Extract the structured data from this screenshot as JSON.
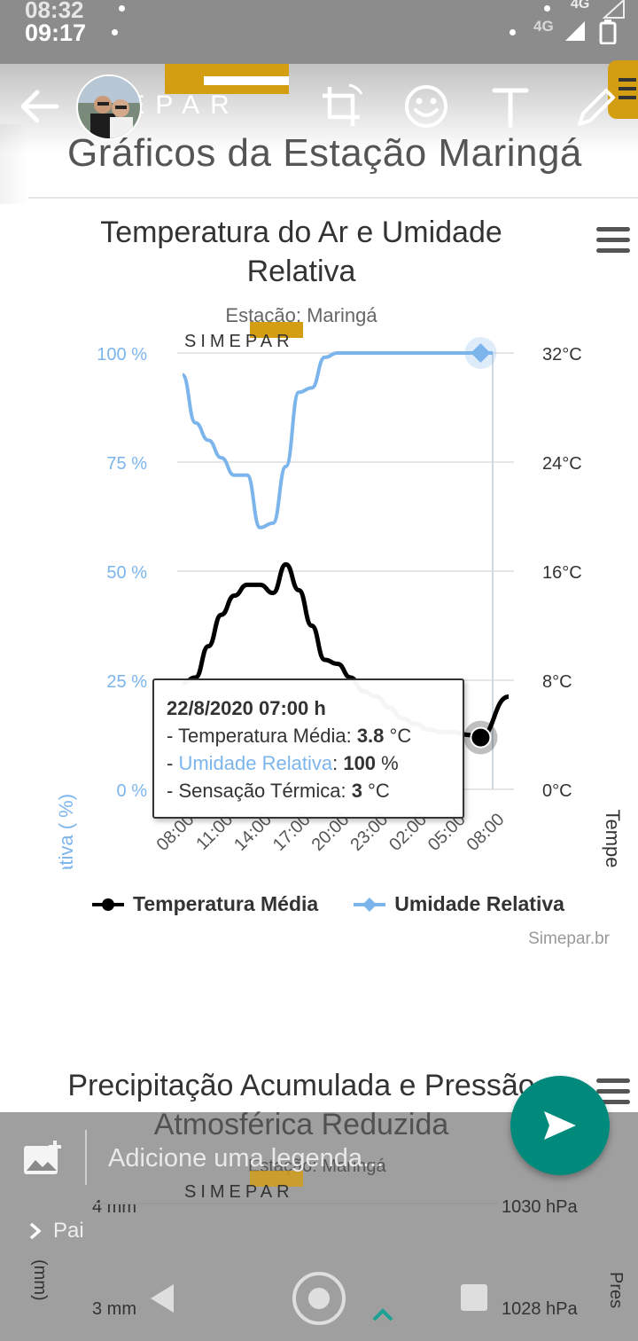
{
  "status_bar": {
    "time_ghost": "08:32",
    "time": "09:17",
    "network_ghost": "4G",
    "network": "4G"
  },
  "page": {
    "title": "Gráficos da Estação Maringá",
    "logo_text": "SIMEPAR"
  },
  "chart1": {
    "title": "Temperatura do Ar e Umidade Relativa",
    "subtitle": "Estação: Maringá",
    "credit": "Simepar.br",
    "tooltip": {
      "header": "22/8/2020 07:00 h",
      "line1_label": "- Temperatura Média: ",
      "line1_value": "3.8",
      "line1_unit": " °C",
      "line2_prefix": "- ",
      "line2_label": "Umidade Relativa",
      "line2_sep": ": ",
      "line2_value": "100",
      "line2_unit": " %",
      "line3_label": "- Sensação Térmica: ",
      "line3_value": "3",
      "line3_unit": " °C"
    }
  },
  "chart_data": {
    "type": "line",
    "title": "Temperatura do Ar e Umidade Relativa",
    "subtitle": "Estação: Maringá",
    "x_tick_labels": [
      "08:00",
      "11:00",
      "14:00",
      "17:00",
      "20:00",
      "23:00",
      "02:00",
      "05:00",
      "08:00"
    ],
    "y_left": {
      "label": "Umidade Relativa ( %)",
      "ticks": [
        "100 %",
        "75 %",
        "50 %",
        "25 %",
        "0 %"
      ],
      "range": [
        0,
        100
      ]
    },
    "y_right": {
      "label": "Temperatura ( °C)",
      "ticks": [
        "32°C",
        "24°C",
        "16°C",
        "8°C",
        "0°C"
      ],
      "range": [
        0,
        32
      ]
    },
    "x_hours": [
      0,
      1,
      2,
      3,
      4,
      5,
      6,
      7,
      8,
      9,
      10,
      11,
      12,
      13,
      14,
      15,
      16,
      17,
      18,
      19,
      20,
      21,
      22,
      23,
      24
    ],
    "series": [
      {
        "name": "Temperatura Média",
        "color": "#000000",
        "marker": "circle",
        "values": [
          7.8,
          8.2,
          10.5,
          12.8,
          14.2,
          15.0,
          15.0,
          14.4,
          16.5,
          14.6,
          12.0,
          9.5,
          9.2,
          8.2,
          7.2,
          6.8,
          6.0,
          5.2,
          4.8,
          4.4,
          4.2,
          4.2,
          4.0,
          3.8,
          6.8
        ]
      },
      {
        "name": "Umidade Relativa",
        "color": "#7cb5ec",
        "marker": "diamond",
        "values": [
          95,
          84,
          80,
          76,
          72,
          72,
          60,
          61,
          74,
          91,
          92,
          99,
          100,
          100,
          100,
          100,
          100,
          100,
          100,
          100,
          100,
          100,
          100,
          100,
          100
        ]
      }
    ],
    "legend": "bottom",
    "grid": true
  },
  "chart2": {
    "title": "Precipitação Acumulada e Pressão Atmosférica Reduzida",
    "subtitle": "Estação: Maringá",
    "tick_left_1": "4 mm",
    "tick_left_2": "3 mm",
    "tick_right_1": "1030 hPa",
    "tick_right_2": "1028 hPa",
    "left_axis_fragment": "(mm)",
    "right_axis_fragment": "Pres"
  },
  "compose": {
    "caption_placeholder": "Adicione uma legenda...",
    "recipient": "Pai"
  },
  "colors": {
    "accent": "#7cb5ec",
    "send": "#008a7c",
    "brand_gold": "#d39e12"
  }
}
